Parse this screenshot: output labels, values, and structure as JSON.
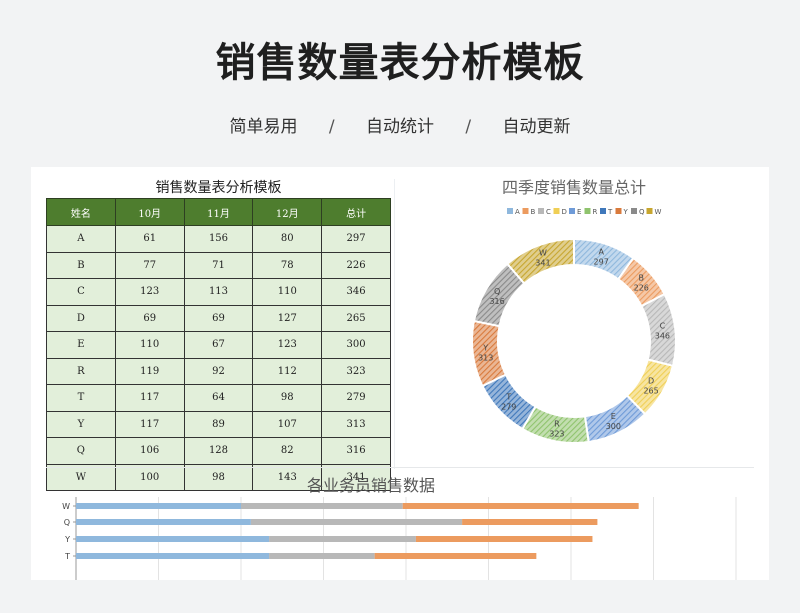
{
  "header": {
    "title": "销售数量表分析模板",
    "features": [
      "简单易用",
      "自动统计",
      "自动更新"
    ],
    "separator": "/"
  },
  "table": {
    "title": "销售数量表分析模板",
    "headers": [
      "姓名",
      "10月",
      "11月",
      "12月",
      "总计"
    ],
    "rows": [
      [
        "A",
        "61",
        "156",
        "80",
        "297"
      ],
      [
        "B",
        "77",
        "71",
        "78",
        "226"
      ],
      [
        "C",
        "123",
        "113",
        "110",
        "346"
      ],
      [
        "D",
        "69",
        "69",
        "127",
        "265"
      ],
      [
        "E",
        "110",
        "67",
        "123",
        "300"
      ],
      [
        "R",
        "119",
        "92",
        "112",
        "323"
      ],
      [
        "T",
        "117",
        "64",
        "98",
        "279"
      ],
      [
        "Y",
        "117",
        "89",
        "107",
        "313"
      ],
      [
        "Q",
        "106",
        "128",
        "82",
        "316"
      ],
      [
        "W",
        "100",
        "98",
        "143",
        "341"
      ]
    ]
  },
  "colors": {
    "header_green": "#4e7d2e",
    "cell_green": "#e2efda",
    "oct": "#8fb8dd",
    "nov": "#b8b8b8",
    "dec": "#ec9b5f",
    "slices": [
      "#8fb8dd",
      "#ec9b5f",
      "#b8b8b8",
      "#f0cf55",
      "#6f9bd8",
      "#8fc36d",
      "#3f78bb",
      "#d97a3c",
      "#8a8a8a",
      "#c7a62f"
    ]
  },
  "chart_data": [
    {
      "type": "pie",
      "title": "四季度销售数量总计",
      "legend_position": "top",
      "categories": [
        "A",
        "B",
        "C",
        "D",
        "E",
        "R",
        "T",
        "Y",
        "Q",
        "W"
      ],
      "values": [
        297,
        226,
        346,
        265,
        300,
        323,
        279,
        313,
        316,
        341
      ]
    },
    {
      "type": "bar",
      "orientation": "horizontal",
      "stacked": true,
      "title": "各业务员销售数据",
      "categories": [
        "W",
        "Q",
        "Y",
        "T"
      ],
      "series": [
        {
          "values": [
            100,
            106,
            117,
            117
          ]
        },
        {
          "values": [
            98,
            128,
            89,
            64
          ]
        },
        {
          "values": [
            143,
            82,
            107,
            98
          ]
        }
      ],
      "xlim": [
        0,
        400
      ]
    }
  ]
}
